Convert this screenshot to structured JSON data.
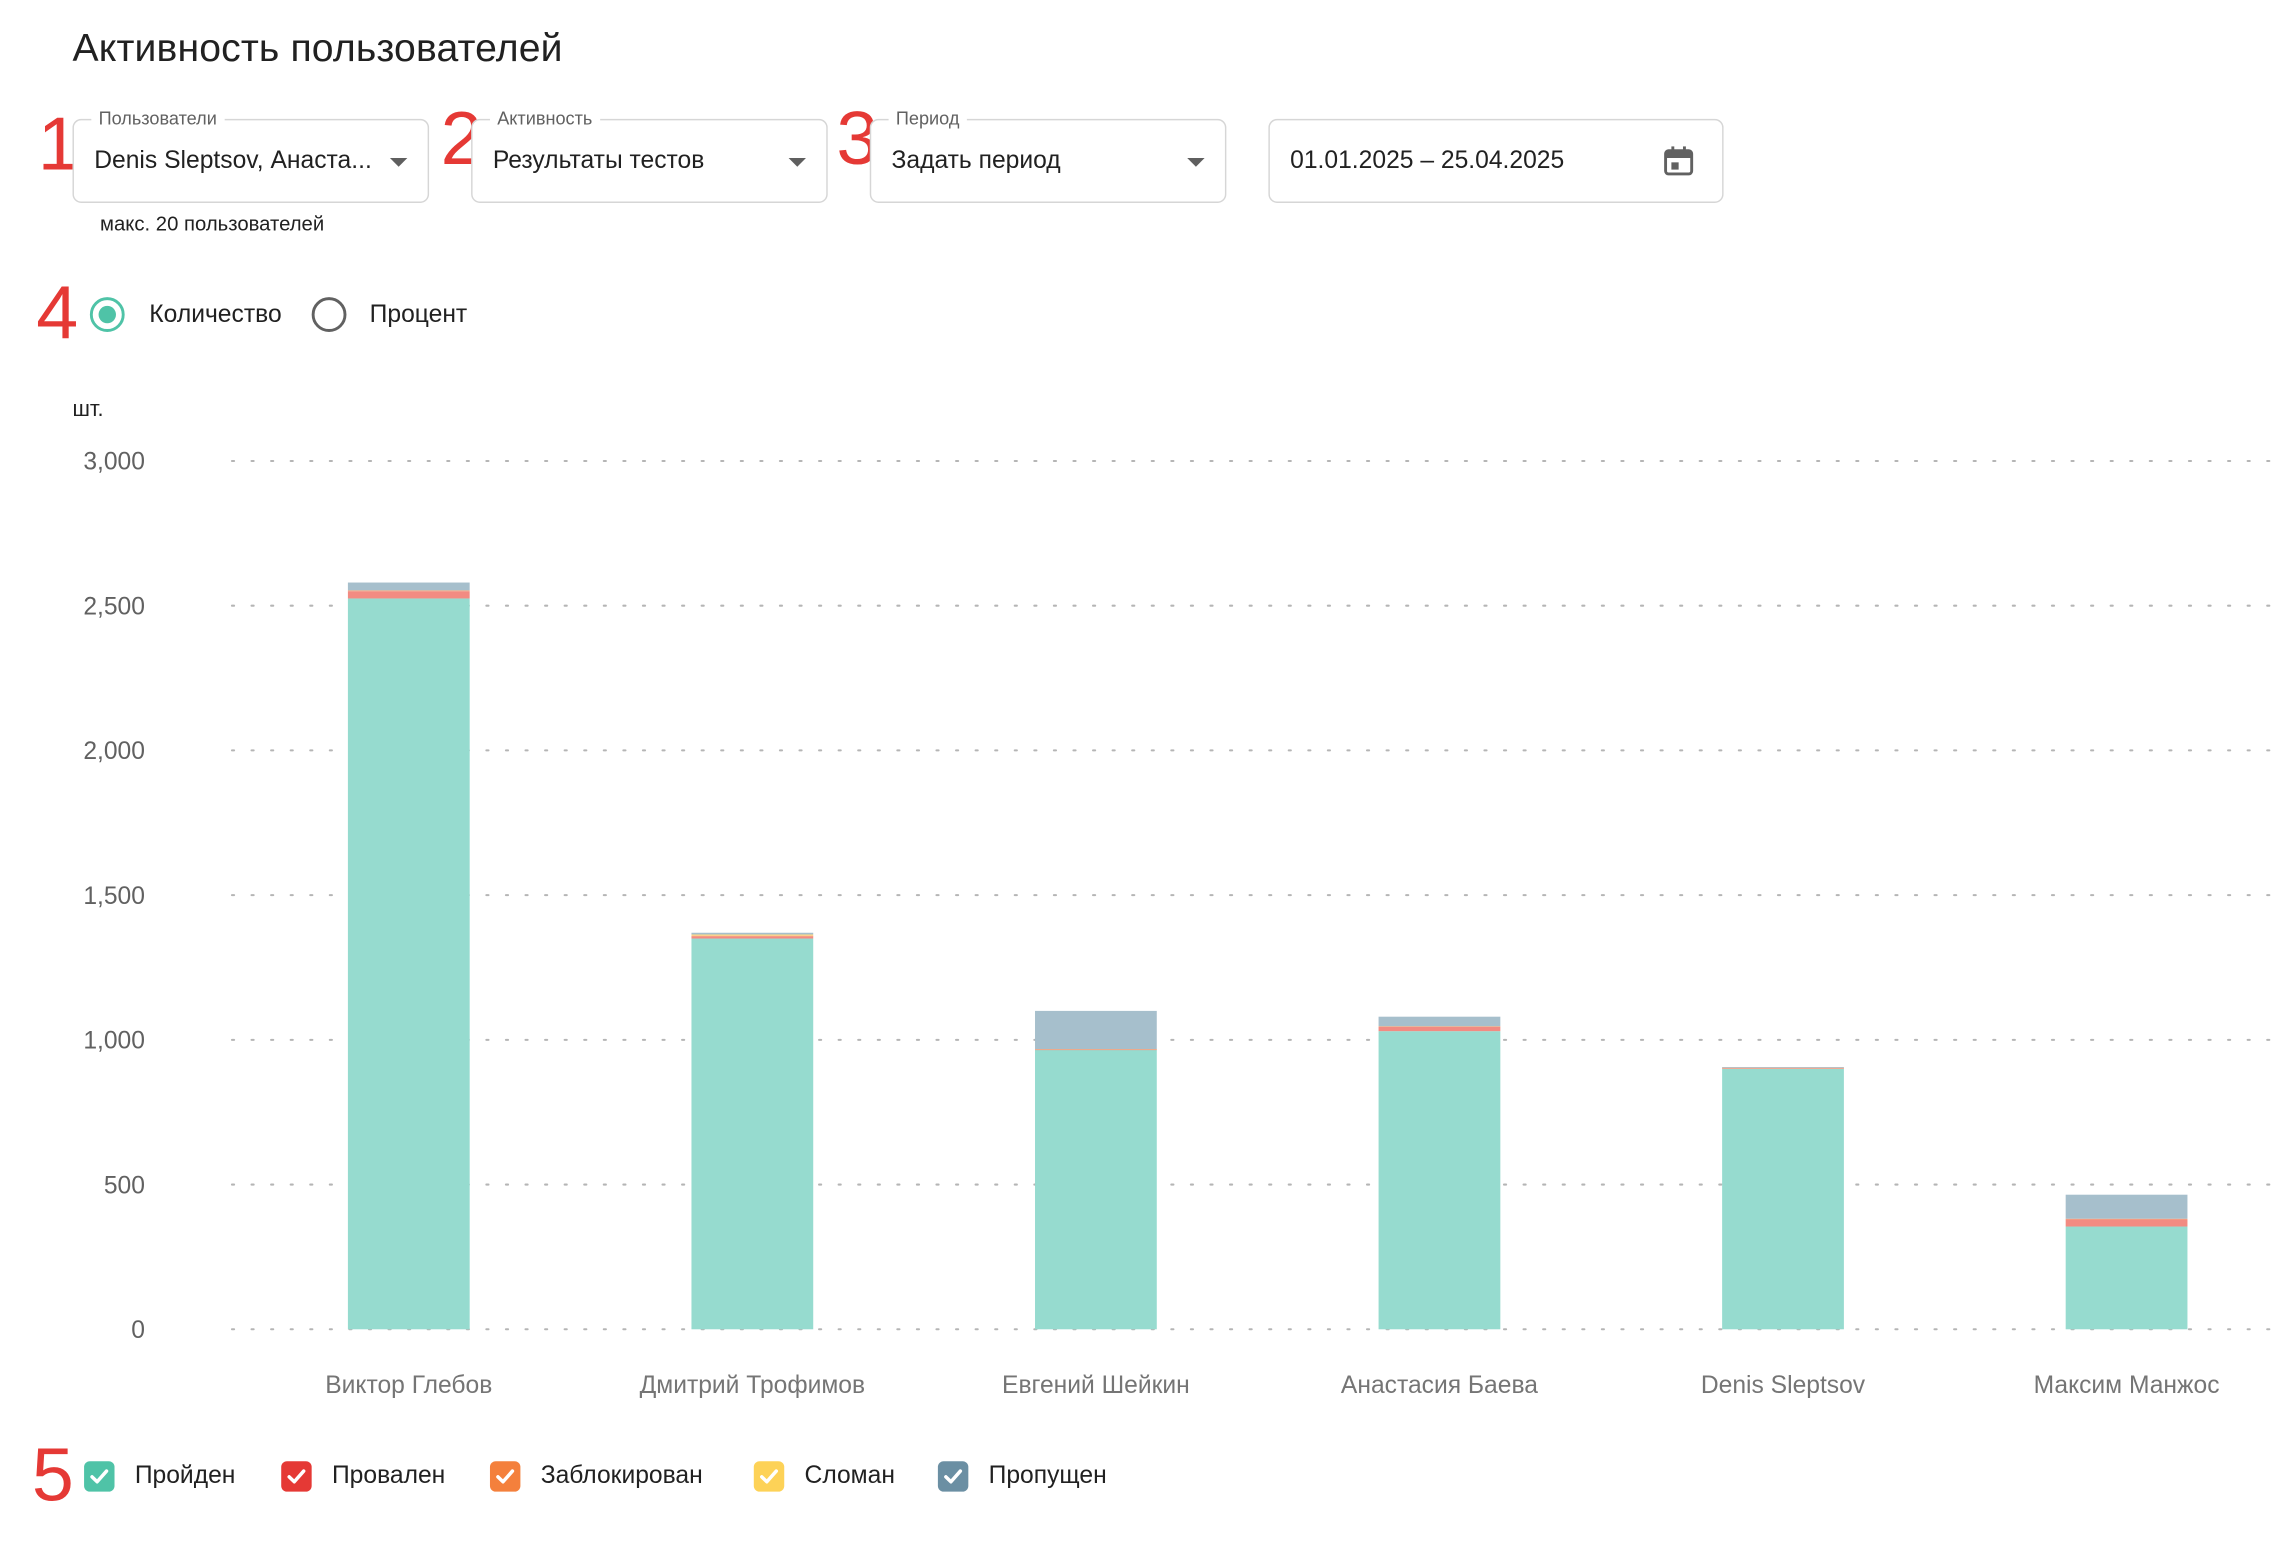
{
  "page": {
    "title": "Активность пользователей"
  },
  "markers": [
    "1",
    "2",
    "3",
    "4",
    "5"
  ],
  "filters": {
    "users": {
      "label": "Пользователи",
      "value": "Denis Sleptsov, Анаста...",
      "helper": "макс. 20 пользователей"
    },
    "activity": {
      "label": "Активность",
      "value": "Результаты тестов"
    },
    "period": {
      "label": "Период",
      "value": "Задать период"
    },
    "date_range": {
      "value": "01.01.2025 – 25.04.2025",
      "icon": "calendar-icon"
    }
  },
  "mode": {
    "options": [
      {
        "label": "Количество",
        "selected": true
      },
      {
        "label": "Процент",
        "selected": false
      }
    ]
  },
  "chart_data": {
    "type": "bar",
    "stacked": true,
    "ylabel": "шт.",
    "ylim": [
      0,
      3000
    ],
    "yticks": [
      0,
      500,
      1000,
      1500,
      2000,
      2500,
      3000
    ],
    "ytick_labels": [
      "0",
      "500",
      "1,000",
      "1,500",
      "2,000",
      "2,500",
      "3,000"
    ],
    "grid": "horizontal-dotted",
    "categories": [
      "Виктор Глебов",
      "Дмитрий Трофимов",
      "Евгений Шейкин",
      "Анастасия Баева",
      "Denis Sleptsov",
      "Максим Манжос"
    ],
    "series": [
      {
        "name": "Пройден",
        "color": "#96dbcf",
        "values": [
          2525,
          1350,
          965,
          1030,
          900,
          355
        ]
      },
      {
        "name": "Провален",
        "color": "#f28b82",
        "values": [
          25,
          8,
          2,
          15,
          3,
          25
        ]
      },
      {
        "name": "Заблокирован",
        "color": "#f5a77a",
        "values": [
          3,
          2,
          1,
          2,
          1,
          2
        ]
      },
      {
        "name": "Сломан",
        "color": "#fdd980",
        "values": [
          0,
          4,
          0,
          0,
          0,
          0
        ]
      },
      {
        "name": "Пропущен",
        "color": "#a6bfcc",
        "values": [
          27,
          6,
          132,
          33,
          2,
          83
        ]
      }
    ],
    "legend_position": "bottom-left"
  },
  "legend": [
    {
      "label": "Пройден",
      "color": "#4fc3a7"
    },
    {
      "label": "Провален",
      "color": "#e53935"
    },
    {
      "label": "Заблокирован",
      "color": "#f4803c"
    },
    {
      "label": "Сломан",
      "color": "#fdd257"
    },
    {
      "label": "Пропущен",
      "color": "#6b8fa3"
    }
  ]
}
